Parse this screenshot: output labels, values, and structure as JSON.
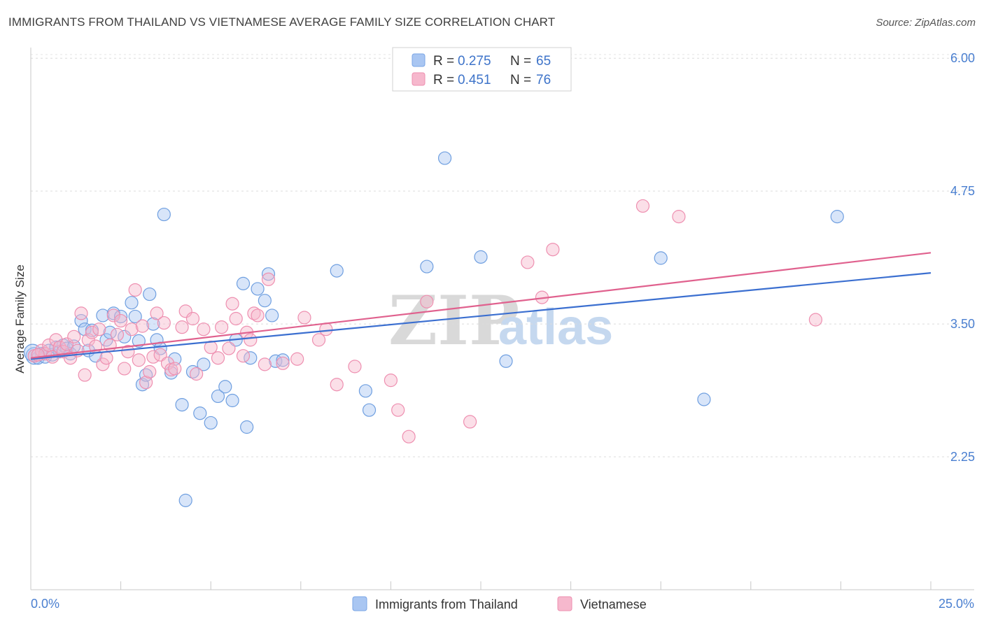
{
  "title": "IMMIGRANTS FROM THAILAND VS VIETNAMESE AVERAGE FAMILY SIZE CORRELATION CHART",
  "source": "Source: ZipAtlas.com",
  "watermark": {
    "zip": "ZIP",
    "atlas": "atlas"
  },
  "legend": {
    "rows": [
      {
        "r_label": "R =",
        "r_value": "0.275",
        "n_label": "N =",
        "n_value": "65",
        "color": "#a9c6f2"
      },
      {
        "r_label": "R =",
        "r_value": "0.451",
        "n_label": "N =",
        "n_value": "76",
        "color": "#f6b8cd"
      }
    ]
  },
  "bottom_legend": {
    "items": [
      {
        "label": "Immigrants from Thailand",
        "color": "#a9c6f2"
      },
      {
        "label": "Vietnamese",
        "color": "#f6b8cd"
      }
    ]
  },
  "chart_data": {
    "type": "scatter",
    "title": "IMMIGRANTS FROM THAILAND VS VIETNAMESE AVERAGE FAMILY SIZE CORRELATION CHART",
    "xlabel": "",
    "ylabel": "Average Family Size",
    "xlim": [
      0,
      25
    ],
    "ylim": [
      1.0,
      6.1
    ],
    "x_tick_labels": [
      "0.0%",
      "25.0%"
    ],
    "y_ticks": [
      2.25,
      3.5,
      4.75,
      6.0
    ],
    "y_tick_labels": [
      "2.25",
      "3.50",
      "4.75",
      "6.00"
    ],
    "grid": true,
    "legend_position": "top-center",
    "series": [
      {
        "name": "Immigrants from Thailand",
        "color": "#6f9fe0",
        "fill": "#a9c6f2",
        "line_color": "#3b6fd0",
        "trend": [
          [
            0,
            3.17
          ],
          [
            25,
            3.98
          ]
        ],
        "points": [
          [
            0.1,
            3.2
          ],
          [
            0.2,
            3.18
          ],
          [
            0.3,
            3.22
          ],
          [
            0.4,
            3.19
          ],
          [
            0.5,
            3.25
          ],
          [
            0.6,
            3.21
          ],
          [
            0.7,
            3.28
          ],
          [
            0.8,
            3.24
          ],
          [
            0.9,
            3.3
          ],
          [
            1.0,
            3.27
          ],
          [
            1.1,
            3.22
          ],
          [
            1.2,
            3.29
          ],
          [
            1.4,
            3.53
          ],
          [
            1.5,
            3.45
          ],
          [
            1.6,
            3.25
          ],
          [
            1.7,
            3.44
          ],
          [
            1.8,
            3.2
          ],
          [
            2.0,
            3.58
          ],
          [
            2.1,
            3.35
          ],
          [
            2.2,
            3.42
          ],
          [
            2.3,
            3.6
          ],
          [
            2.5,
            3.57
          ],
          [
            2.6,
            3.38
          ],
          [
            2.8,
            3.7
          ],
          [
            2.9,
            3.57
          ],
          [
            3.0,
            3.34
          ],
          [
            3.3,
            3.78
          ],
          [
            3.4,
            3.5
          ],
          [
            3.1,
            2.93
          ],
          [
            3.2,
            3.02
          ],
          [
            3.5,
            3.35
          ],
          [
            3.6,
            3.27
          ],
          [
            3.7,
            4.53
          ],
          [
            3.9,
            3.04
          ],
          [
            4.0,
            3.17
          ],
          [
            4.2,
            2.74
          ],
          [
            4.3,
            1.84
          ],
          [
            4.5,
            3.05
          ],
          [
            4.7,
            2.66
          ],
          [
            4.8,
            3.12
          ],
          [
            5.0,
            2.57
          ],
          [
            5.2,
            2.82
          ],
          [
            5.4,
            2.91
          ],
          [
            5.6,
            2.78
          ],
          [
            5.7,
            3.35
          ],
          [
            5.9,
            3.88
          ],
          [
            6.0,
            2.53
          ],
          [
            6.1,
            3.18
          ],
          [
            6.3,
            3.83
          ],
          [
            6.5,
            3.72
          ],
          [
            6.6,
            3.97
          ],
          [
            6.7,
            3.58
          ],
          [
            6.8,
            3.15
          ],
          [
            7.0,
            3.16
          ],
          [
            8.5,
            4.0
          ],
          [
            9.3,
            2.87
          ],
          [
            9.4,
            2.69
          ],
          [
            11.0,
            4.04
          ],
          [
            11.5,
            5.06
          ],
          [
            12.5,
            4.13
          ],
          [
            13.2,
            3.15
          ],
          [
            17.5,
            4.12
          ],
          [
            18.7,
            2.79
          ],
          [
            22.4,
            4.51
          ],
          [
            0.05,
            3.23
          ]
        ]
      },
      {
        "name": "Vietnamese",
        "color": "#ee8fb0",
        "fill": "#f6b8cd",
        "line_color": "#e0618e",
        "trend": [
          [
            0,
            3.18
          ],
          [
            25,
            4.17
          ]
        ],
        "points": [
          [
            0.1,
            3.2
          ],
          [
            0.3,
            3.25
          ],
          [
            0.4,
            3.22
          ],
          [
            0.5,
            3.3
          ],
          [
            0.6,
            3.19
          ],
          [
            0.7,
            3.35
          ],
          [
            0.8,
            3.28
          ],
          [
            0.9,
            3.24
          ],
          [
            1.0,
            3.31
          ],
          [
            1.1,
            3.18
          ],
          [
            1.2,
            3.38
          ],
          [
            1.3,
            3.25
          ],
          [
            1.4,
            3.6
          ],
          [
            1.5,
            3.02
          ],
          [
            1.6,
            3.35
          ],
          [
            1.7,
            3.42
          ],
          [
            1.8,
            3.29
          ],
          [
            1.9,
            3.45
          ],
          [
            2.0,
            3.12
          ],
          [
            2.1,
            3.18
          ],
          [
            2.2,
            3.3
          ],
          [
            2.3,
            3.58
          ],
          [
            2.4,
            3.4
          ],
          [
            2.5,
            3.53
          ],
          [
            2.6,
            3.08
          ],
          [
            2.7,
            3.24
          ],
          [
            2.8,
            3.45
          ],
          [
            2.9,
            3.82
          ],
          [
            3.0,
            3.16
          ],
          [
            3.1,
            3.48
          ],
          [
            3.2,
            2.95
          ],
          [
            3.3,
            3.05
          ],
          [
            3.4,
            3.19
          ],
          [
            3.5,
            3.6
          ],
          [
            3.6,
            3.21
          ],
          [
            3.7,
            3.51
          ],
          [
            3.8,
            3.13
          ],
          [
            3.9,
            3.07
          ],
          [
            4.0,
            3.08
          ],
          [
            4.2,
            3.47
          ],
          [
            4.3,
            3.62
          ],
          [
            4.5,
            3.55
          ],
          [
            4.6,
            3.03
          ],
          [
            4.8,
            3.45
          ],
          [
            5.0,
            3.28
          ],
          [
            5.2,
            3.18
          ],
          [
            5.3,
            3.47
          ],
          [
            5.5,
            3.27
          ],
          [
            5.6,
            3.69
          ],
          [
            5.7,
            3.55
          ],
          [
            5.9,
            3.2
          ],
          [
            6.0,
            3.42
          ],
          [
            6.1,
            3.35
          ],
          [
            6.2,
            3.6
          ],
          [
            6.3,
            3.58
          ],
          [
            6.5,
            3.12
          ],
          [
            6.6,
            3.92
          ],
          [
            7.0,
            3.13
          ],
          [
            7.4,
            3.17
          ],
          [
            7.6,
            3.56
          ],
          [
            8.0,
            3.35
          ],
          [
            8.2,
            3.45
          ],
          [
            8.5,
            2.93
          ],
          [
            9.0,
            3.1
          ],
          [
            10.0,
            2.97
          ],
          [
            10.2,
            2.69
          ],
          [
            10.5,
            2.44
          ],
          [
            11.0,
            3.71
          ],
          [
            12.2,
            2.58
          ],
          [
            13.8,
            4.08
          ],
          [
            14.2,
            3.75
          ],
          [
            14.5,
            4.2
          ],
          [
            17.0,
            4.61
          ],
          [
            18.0,
            4.51
          ],
          [
            21.8,
            3.54
          ],
          [
            0.2,
            3.21
          ]
        ]
      }
    ]
  }
}
